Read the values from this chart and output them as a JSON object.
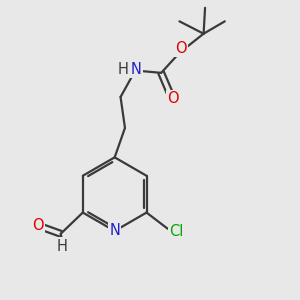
{
  "bg_color": "#e8e8e8",
  "bond_color": "#3a3a3a",
  "atom_colors": {
    "N": "#2020cc",
    "O": "#dd0000",
    "Cl": "#00aa00",
    "C": "#3a3a3a",
    "H": "#3a3a3a"
  },
  "line_width": 1.6,
  "font_size": 10.5
}
